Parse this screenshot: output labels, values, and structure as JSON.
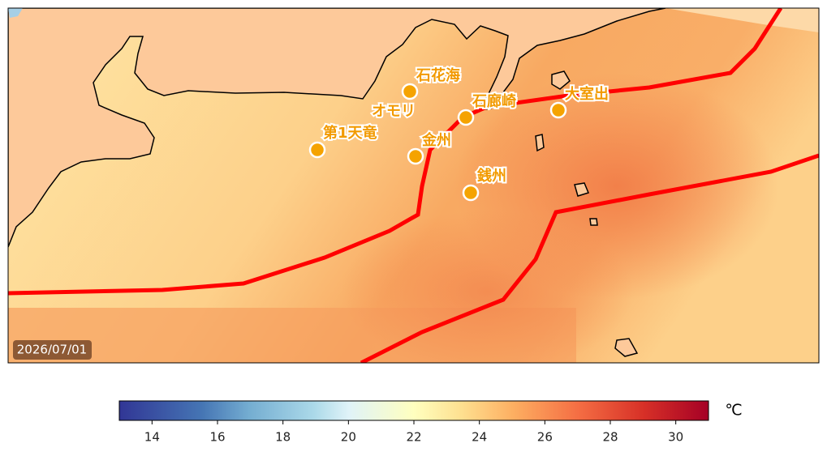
{
  "map": {
    "date": "2026/07/01",
    "sites": [
      "第1天竜",
      "石花海",
      "オモリ",
      "金州",
      "石廊崎",
      "大室出",
      "銭州"
    ]
  },
  "colorbar": {
    "unit": "℃",
    "lim": [
      13,
      31
    ],
    "ticks": [
      14,
      16,
      18,
      20,
      22,
      24,
      26,
      28,
      30
    ]
  }
}
